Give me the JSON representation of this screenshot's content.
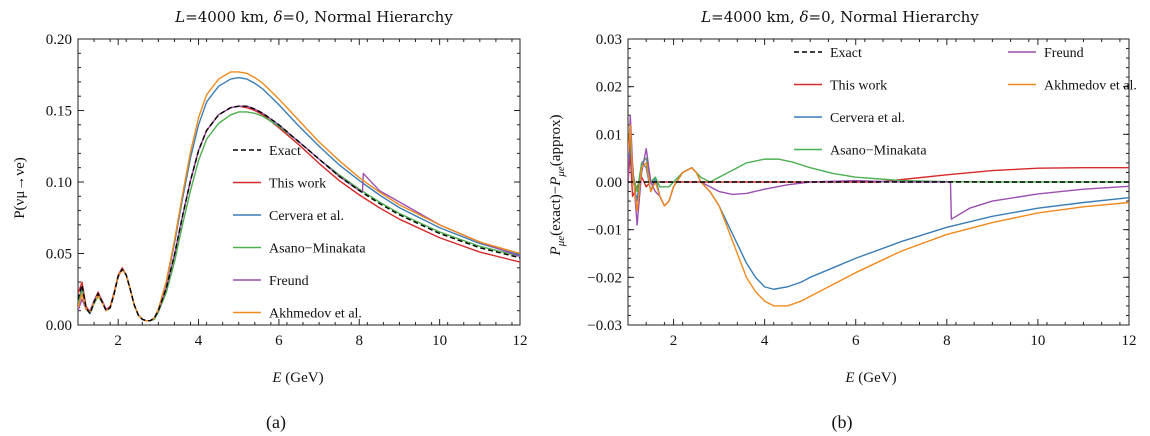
{
  "colors": {
    "exact": "#000000",
    "this_work": "#d62a2a",
    "cervera": "#3a7db5",
    "asano": "#4caf50",
    "freund": "#9b4fb0",
    "akhmedov": "#f08a1c"
  },
  "chart_data": [
    {
      "type": "line",
      "panel_label": "(a)",
      "title_parts": {
        "var": "L",
        "text1": "=4000 km, ",
        "delta": "δ",
        "text2": "=0, Normal Hierarchy"
      },
      "xlabel": {
        "var": "E",
        "unit": " (GeV)"
      },
      "ylabel": "P(νμ→νe)",
      "xlim": [
        1,
        12
      ],
      "ylim": [
        0,
        0.2
      ],
      "xticks": [
        2,
        4,
        6,
        8,
        10,
        12
      ],
      "yticks": [
        "0.00",
        "0.05",
        "0.10",
        "0.15",
        "0.20"
      ],
      "yticks_values": [
        0,
        0.05,
        0.1,
        0.15,
        0.2
      ],
      "legend_position": "center-right",
      "series": [
        {
          "name": "Exact",
          "key": "exact",
          "style": "dashed",
          "x": [
            1.0,
            1.1,
            1.2,
            1.3,
            1.4,
            1.5,
            1.6,
            1.7,
            1.8,
            1.9,
            2.0,
            2.1,
            2.2,
            2.3,
            2.4,
            2.5,
            2.6,
            2.7,
            2.8,
            2.9,
            3.0,
            3.2,
            3.4,
            3.6,
            3.8,
            4.0,
            4.2,
            4.5,
            4.8,
            5.0,
            5.2,
            5.4,
            5.6,
            6.0,
            6.5,
            7.0,
            7.5,
            8.0,
            8.5,
            9.0,
            10.0,
            11.0,
            12.0
          ],
          "y": [
            0.018,
            0.028,
            0.012,
            0.008,
            0.016,
            0.022,
            0.016,
            0.01,
            0.012,
            0.022,
            0.034,
            0.039,
            0.035,
            0.025,
            0.014,
            0.007,
            0.004,
            0.003,
            0.003,
            0.005,
            0.01,
            0.026,
            0.049,
            0.076,
            0.101,
            0.122,
            0.136,
            0.147,
            0.152,
            0.153,
            0.153,
            0.151,
            0.148,
            0.14,
            0.128,
            0.116,
            0.104,
            0.094,
            0.085,
            0.077,
            0.064,
            0.054,
            0.047
          ]
        },
        {
          "name": "This work",
          "key": "this_work",
          "style": "solid",
          "x": [
            1.0,
            1.1,
            1.2,
            1.3,
            1.4,
            1.5,
            1.6,
            1.7,
            1.8,
            1.9,
            2.0,
            2.1,
            2.2,
            2.3,
            2.4,
            2.5,
            2.6,
            2.7,
            2.8,
            2.9,
            3.0,
            3.2,
            3.4,
            3.6,
            3.8,
            4.0,
            4.2,
            4.5,
            4.8,
            5.0,
            5.2,
            5.4,
            5.6,
            6.0,
            6.5,
            7.0,
            7.5,
            8.0,
            8.5,
            9.0,
            10.0,
            11.0,
            12.0
          ],
          "y": [
            0.022,
            0.03,
            0.013,
            0.009,
            0.017,
            0.023,
            0.017,
            0.011,
            0.013,
            0.023,
            0.035,
            0.04,
            0.035,
            0.025,
            0.014,
            0.007,
            0.004,
            0.003,
            0.003,
            0.005,
            0.01,
            0.026,
            0.049,
            0.076,
            0.101,
            0.122,
            0.136,
            0.147,
            0.152,
            0.153,
            0.152,
            0.15,
            0.147,
            0.138,
            0.126,
            0.113,
            0.101,
            0.091,
            0.082,
            0.074,
            0.061,
            0.051,
            0.044
          ]
        },
        {
          "name": "Cervera et al.",
          "key": "cervera",
          "style": "solid",
          "x": [
            1.0,
            1.1,
            1.2,
            1.3,
            1.4,
            1.5,
            1.6,
            1.7,
            1.8,
            1.9,
            2.0,
            2.1,
            2.2,
            2.3,
            2.4,
            2.5,
            2.6,
            2.7,
            2.8,
            2.9,
            3.0,
            3.2,
            3.4,
            3.6,
            3.8,
            4.0,
            4.2,
            4.5,
            4.8,
            5.0,
            5.2,
            5.4,
            5.6,
            6.0,
            6.5,
            7.0,
            7.5,
            8.0,
            8.5,
            9.0,
            10.0,
            11.0,
            12.0
          ],
          "y": [
            0.016,
            0.026,
            0.011,
            0.008,
            0.015,
            0.021,
            0.016,
            0.01,
            0.012,
            0.022,
            0.034,
            0.039,
            0.035,
            0.025,
            0.014,
            0.007,
            0.004,
            0.003,
            0.003,
            0.005,
            0.011,
            0.03,
            0.057,
            0.088,
            0.117,
            0.14,
            0.156,
            0.167,
            0.172,
            0.173,
            0.172,
            0.169,
            0.165,
            0.154,
            0.139,
            0.125,
            0.112,
            0.101,
            0.091,
            0.082,
            0.068,
            0.057,
            0.049
          ]
        },
        {
          "name": "Asano−Minakata",
          "key": "asano",
          "style": "solid",
          "x": [
            1.0,
            1.1,
            1.2,
            1.3,
            1.4,
            1.5,
            1.6,
            1.7,
            1.8,
            1.9,
            2.0,
            2.1,
            2.2,
            2.3,
            2.4,
            2.5,
            2.6,
            2.7,
            2.8,
            2.9,
            3.0,
            3.2,
            3.4,
            3.6,
            3.8,
            4.0,
            4.2,
            4.5,
            4.8,
            5.0,
            5.2,
            5.4,
            5.6,
            6.0,
            6.5,
            7.0,
            7.5,
            8.0,
            8.5,
            9.0,
            10.0,
            11.0,
            12.0
          ],
          "y": [
            0.014,
            0.024,
            0.011,
            0.009,
            0.015,
            0.02,
            0.016,
            0.011,
            0.012,
            0.022,
            0.034,
            0.039,
            0.035,
            0.025,
            0.014,
            0.007,
            0.004,
            0.003,
            0.003,
            0.004,
            0.009,
            0.023,
            0.044,
            0.07,
            0.094,
            0.115,
            0.13,
            0.141,
            0.147,
            0.149,
            0.149,
            0.148,
            0.146,
            0.139,
            0.128,
            0.116,
            0.105,
            0.095,
            0.086,
            0.078,
            0.065,
            0.055,
            0.048
          ]
        },
        {
          "name": "Freund",
          "key": "freund",
          "style": "solid",
          "x": [
            1.0,
            1.1,
            1.2,
            1.3,
            1.4,
            1.5,
            1.6,
            1.7,
            1.8,
            1.9,
            2.0,
            2.1,
            2.2,
            2.3,
            2.4,
            2.5,
            2.6,
            2.7,
            2.8,
            2.9,
            3.0,
            3.2,
            3.4,
            3.6,
            3.8,
            4.0,
            4.2,
            4.5,
            4.8,
            5.0,
            5.2,
            5.4,
            5.6,
            6.0,
            6.5,
            7.0,
            7.5,
            8.0,
            8.08,
            8.1,
            8.5,
            9.0,
            10.0,
            11.0,
            12.0
          ],
          "y": [
            0.01,
            0.018,
            0.011,
            0.01,
            0.017,
            0.022,
            0.017,
            0.011,
            0.012,
            0.022,
            0.034,
            0.039,
            0.035,
            0.025,
            0.014,
            0.007,
            0.004,
            0.003,
            0.003,
            0.005,
            0.01,
            0.026,
            0.049,
            0.076,
            0.101,
            0.122,
            0.136,
            0.147,
            0.152,
            0.153,
            0.153,
            0.151,
            0.148,
            0.14,
            0.128,
            0.116,
            0.104,
            0.094,
            0.093,
            0.106,
            0.094,
            0.086,
            0.07,
            0.058,
            0.048
          ]
        },
        {
          "name": "Akhmedov et al.",
          "key": "akhmedov",
          "style": "solid",
          "x": [
            1.0,
            1.1,
            1.2,
            1.3,
            1.4,
            1.5,
            1.6,
            1.7,
            1.8,
            1.9,
            2.0,
            2.1,
            2.2,
            2.3,
            2.4,
            2.5,
            2.6,
            2.7,
            2.8,
            2.9,
            3.0,
            3.2,
            3.4,
            3.6,
            3.8,
            4.0,
            4.2,
            4.5,
            4.8,
            5.0,
            5.2,
            5.4,
            5.6,
            6.0,
            6.5,
            7.0,
            7.5,
            8.0,
            8.5,
            9.0,
            10.0,
            11.0,
            12.0
          ],
          "y": [
            0.012,
            0.022,
            0.011,
            0.009,
            0.016,
            0.021,
            0.016,
            0.01,
            0.012,
            0.022,
            0.034,
            0.039,
            0.035,
            0.025,
            0.014,
            0.007,
            0.004,
            0.003,
            0.003,
            0.005,
            0.011,
            0.031,
            0.059,
            0.091,
            0.121,
            0.145,
            0.161,
            0.172,
            0.177,
            0.177,
            0.176,
            0.173,
            0.169,
            0.158,
            0.143,
            0.128,
            0.115,
            0.103,
            0.093,
            0.084,
            0.07,
            0.058,
            0.05
          ]
        }
      ]
    },
    {
      "type": "line",
      "panel_label": "(b)",
      "title_parts": {
        "var": "L",
        "text1": "=4000 km, ",
        "delta": "δ",
        "text2": "=0, Normal Hierarchy"
      },
      "xlabel": {
        "var": "E",
        "unit": " (GeV)"
      },
      "ylabel_parts": {
        "p1": "P",
        "s1": "μe",
        "t1": "(exact)−",
        "p2": "P",
        "s2": "μe",
        "t2": "(approx)"
      },
      "xlim": [
        1,
        12
      ],
      "ylim": [
        -0.03,
        0.03
      ],
      "xticks": [
        2,
        4,
        6,
        8,
        10,
        12
      ],
      "yticks": [
        "−0.03",
        "−0.02",
        "−0.01",
        "0.00",
        "0.01",
        "0.02",
        "0.03"
      ],
      "yticks_values": [
        -0.03,
        -0.02,
        -0.01,
        0,
        0.01,
        0.02,
        0.03
      ],
      "legend_position": "top",
      "series": [
        {
          "name": "Exact",
          "key": "exact",
          "style": "dashed",
          "x": [
            1.0,
            12.0
          ],
          "y": [
            0.0,
            0.0
          ]
        },
        {
          "name": "This work",
          "key": "this_work",
          "style": "solid",
          "x": [
            1.0,
            1.05,
            1.1,
            1.2,
            1.3,
            1.4,
            1.5,
            1.6,
            1.8,
            2.0,
            2.5,
            3.0,
            4.0,
            5.0,
            6.0,
            6.5,
            7.0,
            8.0,
            9.0,
            10.0,
            11.0,
            12.0
          ],
          "y": [
            0.0,
            0.006,
            -0.003,
            -0.001,
            0.001,
            -0.001,
            0.0,
            0.0,
            0.0,
            0.0,
            0.0,
            0.0,
            0.0,
            0.0,
            0.0,
            0.0,
            0.0005,
            0.0015,
            0.0024,
            0.0029,
            0.003,
            0.003
          ]
        },
        {
          "name": "Cervera et al.",
          "key": "cervera",
          "style": "solid",
          "x": [
            1.0,
            1.05,
            1.1,
            1.2,
            1.3,
            1.4,
            1.5,
            1.6,
            1.7,
            1.8,
            1.9,
            2.0,
            2.2,
            2.4,
            2.5,
            2.6,
            2.8,
            3.0,
            3.2,
            3.4,
            3.6,
            3.8,
            4.0,
            4.2,
            4.5,
            4.8,
            5.0,
            5.5,
            6.0,
            7.0,
            8.0,
            9.0,
            10.0,
            11.0,
            12.0
          ],
          "y": [
            0.002,
            0.008,
            0.001,
            -0.004,
            0.004,
            0.003,
            -0.002,
            0.001,
            -0.003,
            -0.005,
            -0.004,
            -0.001,
            0.002,
            0.003,
            0.002,
            0.0,
            -0.002,
            -0.005,
            -0.009,
            -0.013,
            -0.017,
            -0.02,
            -0.022,
            -0.0225,
            -0.022,
            -0.021,
            -0.02,
            -0.018,
            -0.016,
            -0.0125,
            -0.0095,
            -0.0072,
            -0.0055,
            -0.0043,
            -0.0033
          ]
        },
        {
          "name": "Asano−Minakata",
          "key": "asano",
          "style": "solid",
          "x": [
            1.0,
            1.05,
            1.1,
            1.2,
            1.3,
            1.4,
            1.5,
            1.6,
            1.7,
            1.8,
            1.9,
            2.0,
            2.2,
            2.4,
            2.5,
            2.6,
            2.8,
            3.0,
            3.3,
            3.6,
            4.0,
            4.3,
            4.6,
            5.0,
            5.5,
            6.0,
            7.0,
            8.0,
            9.0,
            10.0,
            12.0
          ],
          "y": [
            0.004,
            0.01,
            0.002,
            -0.002,
            0.004,
            0.005,
            0.0,
            0.001,
            -0.001,
            -0.001,
            -0.001,
            0.0,
            0.002,
            0.003,
            0.002,
            0.001,
            0.0,
            0.001,
            0.0025,
            0.004,
            0.0048,
            0.0048,
            0.0042,
            0.003,
            0.0018,
            0.001,
            0.0003,
            0.0001,
            0.0,
            0.0,
            0.0
          ]
        },
        {
          "name": "Freund",
          "key": "freund",
          "style": "solid",
          "x": [
            1.0,
            1.05,
            1.1,
            1.2,
            1.3,
            1.4,
            1.5,
            1.6,
            1.7,
            1.8,
            1.9,
            2.0,
            2.2,
            2.4,
            2.5,
            2.6,
            2.8,
            3.0,
            3.3,
            3.6,
            4.0,
            4.5,
            5.0,
            6.0,
            7.0,
            8.0,
            8.08,
            8.1,
            8.5,
            9.0,
            10.0,
            11.0,
            12.0
          ],
          "y": [
            0.0,
            0.014,
            0.004,
            -0.009,
            0.002,
            0.007,
            0.0,
            -0.002,
            -0.003,
            -0.005,
            -0.004,
            -0.001,
            0.002,
            0.003,
            0.002,
            0.0,
            -0.001,
            -0.002,
            -0.0026,
            -0.0024,
            -0.0015,
            -0.0006,
            0.0,
            0.0003,
            0.0,
            0.0,
            0.0,
            -0.0078,
            -0.0055,
            -0.004,
            -0.0025,
            -0.0015,
            -0.0009
          ]
        },
        {
          "name": "Akhmedov et al.",
          "key": "akhmedov",
          "style": "solid",
          "x": [
            1.0,
            1.05,
            1.1,
            1.2,
            1.3,
            1.4,
            1.5,
            1.6,
            1.7,
            1.8,
            1.9,
            2.0,
            2.2,
            2.4,
            2.5,
            2.6,
            2.8,
            3.0,
            3.2,
            3.4,
            3.6,
            3.8,
            4.0,
            4.2,
            4.5,
            4.8,
            5.0,
            5.5,
            6.0,
            7.0,
            8.0,
            9.0,
            10.0,
            11.0,
            12.0
          ],
          "y": [
            0.006,
            0.012,
            0.002,
            -0.006,
            0.003,
            0.004,
            -0.002,
            0.0,
            -0.003,
            -0.005,
            -0.004,
            -0.001,
            0.002,
            0.003,
            0.002,
            0.0,
            -0.002,
            -0.005,
            -0.01,
            -0.015,
            -0.02,
            -0.023,
            -0.025,
            -0.026,
            -0.026,
            -0.025,
            -0.024,
            -0.0215,
            -0.019,
            -0.0145,
            -0.011,
            -0.0085,
            -0.0065,
            -0.0052,
            -0.0043
          ]
        }
      ]
    }
  ]
}
